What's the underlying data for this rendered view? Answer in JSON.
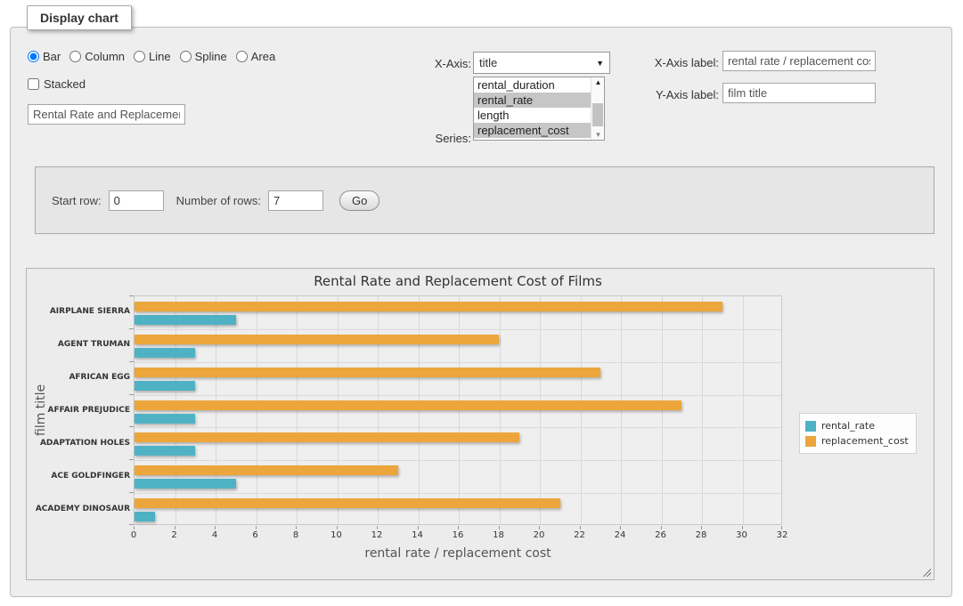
{
  "display_panel": {
    "legend": "Display chart"
  },
  "chart_type": {
    "options": [
      {
        "label": "Bar",
        "selected": true
      },
      {
        "label": "Column",
        "selected": false
      },
      {
        "label": "Line",
        "selected": false
      },
      {
        "label": "Spline",
        "selected": false
      },
      {
        "label": "Area",
        "selected": false
      }
    ]
  },
  "stacked_checkbox": {
    "label": "Stacked",
    "checked": false
  },
  "chart_title_input": {
    "value": "Rental Rate and Replacement Cost of Films"
  },
  "x_axis_select": {
    "label": "X-Axis:",
    "value": "title"
  },
  "series_list": {
    "label": "Series:",
    "options": [
      {
        "label": "rental_duration",
        "selected": false
      },
      {
        "label": "rental_rate",
        "selected": true
      },
      {
        "label": "length",
        "selected": false
      },
      {
        "label": "replacement_cost",
        "selected": true
      }
    ]
  },
  "x_axis_label_input": {
    "label": "X-Axis label:",
    "value": "rental rate / replacement cost"
  },
  "y_axis_label_input": {
    "label": "Y-Axis label:",
    "value": "film title"
  },
  "row_controls": {
    "start_row_label": "Start row:",
    "start_row_value": "0",
    "number_of_rows_label": "Number of rows:",
    "number_of_rows_value": "7",
    "go_button": "Go"
  },
  "chart_data": {
    "type": "bar",
    "orientation": "horizontal",
    "title": "Rental Rate and Replacement Cost of Films",
    "categories": [
      "AIRPLANE SIERRA",
      "AGENT TRUMAN",
      "AFRICAN EGG",
      "AFFAIR PREJUDICE",
      "ADAPTATION HOLES",
      "ACE GOLDFINGER",
      "ACADEMY DINOSAUR"
    ],
    "series": [
      {
        "name": "rental_rate",
        "color": "#4FB2C4",
        "values": [
          4.99,
          2.99,
          2.99,
          2.99,
          2.99,
          4.99,
          0.99
        ]
      },
      {
        "name": "replacement_cost",
        "color": "#EDA63B",
        "values": [
          28.99,
          17.99,
          22.99,
          26.99,
          18.99,
          12.99,
          20.99
        ]
      }
    ],
    "xlabel": "rental rate / replacement cost",
    "ylabel": "film title",
    "xlim": [
      0,
      32
    ],
    "x_tick_step": 2,
    "grid": true,
    "legend_position": "right"
  },
  "colors": {
    "rental_rate": "#4FB2C4",
    "replacement_cost": "#EDA63B",
    "grid": "#D9D9D9"
  }
}
